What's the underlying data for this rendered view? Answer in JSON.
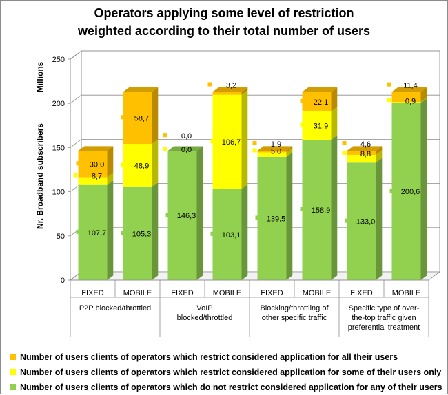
{
  "chart_data": {
    "type": "bar",
    "stacked": true,
    "title_lines": [
      "Operators applying some level of restriction",
      "weighted according to their total number of users"
    ],
    "ylabel_line1": "Millions",
    "ylabel_line2": "Nr. Broadband subscribers",
    "ylim": [
      0,
      250
    ],
    "yticks": [
      "0",
      "50",
      "100",
      "150",
      "200",
      "250"
    ],
    "grid": true,
    "categories": [
      "FIXED",
      "MOBILE",
      "FIXED",
      "MOBILE",
      "FIXED",
      "MOBILE",
      "FIXED",
      "MOBILE"
    ],
    "groups": [
      {
        "label_lines": [
          "P2P blocked/throttled"
        ]
      },
      {
        "label_lines": [
          "VoIP",
          "blocked/throttled"
        ]
      },
      {
        "label_lines": [
          "Blocking/throttling of",
          "other specific traffic"
        ]
      },
      {
        "label_lines": [
          "Specific type of over-",
          "the-top traffic given",
          "preferential treatment"
        ]
      }
    ],
    "series": [
      {
        "name": "Number of users clients of operators which do not restrict considered application for any of their users",
        "color": "#92d050",
        "values": [
          107.7,
          105.3,
          146.3,
          103.1,
          139.5,
          158.9,
          133.0,
          200.6
        ],
        "labels": [
          "107,7",
          "105,3",
          "146,3",
          "103,1",
          "139,5",
          "158,9",
          "133,0",
          "200,6"
        ]
      },
      {
        "name": "Number of users clients of operators which restrict considered application for some of their users only",
        "color": "#ffff00",
        "values": [
          8.7,
          48.9,
          0.0,
          106.7,
          5.0,
          31.9,
          8.8,
          0.9
        ],
        "labels": [
          "8,7",
          "48,9",
          "0,0",
          "106,7",
          "5,0",
          "31,9",
          "8,8",
          "0,9"
        ]
      },
      {
        "name": "Number of users clients of operators which restrict considered application for all their users",
        "color": "#ffc000",
        "values": [
          30.0,
          58.7,
          0.0,
          3.2,
          1.9,
          22.1,
          4.6,
          11.4
        ],
        "labels": [
          "30,0",
          "58,7",
          "0,0",
          "3,2",
          "1,9",
          "22,1",
          "4,6",
          "11,4"
        ]
      }
    ],
    "legend_position": "bottom",
    "legend_order": [
      2,
      1,
      0
    ]
  }
}
